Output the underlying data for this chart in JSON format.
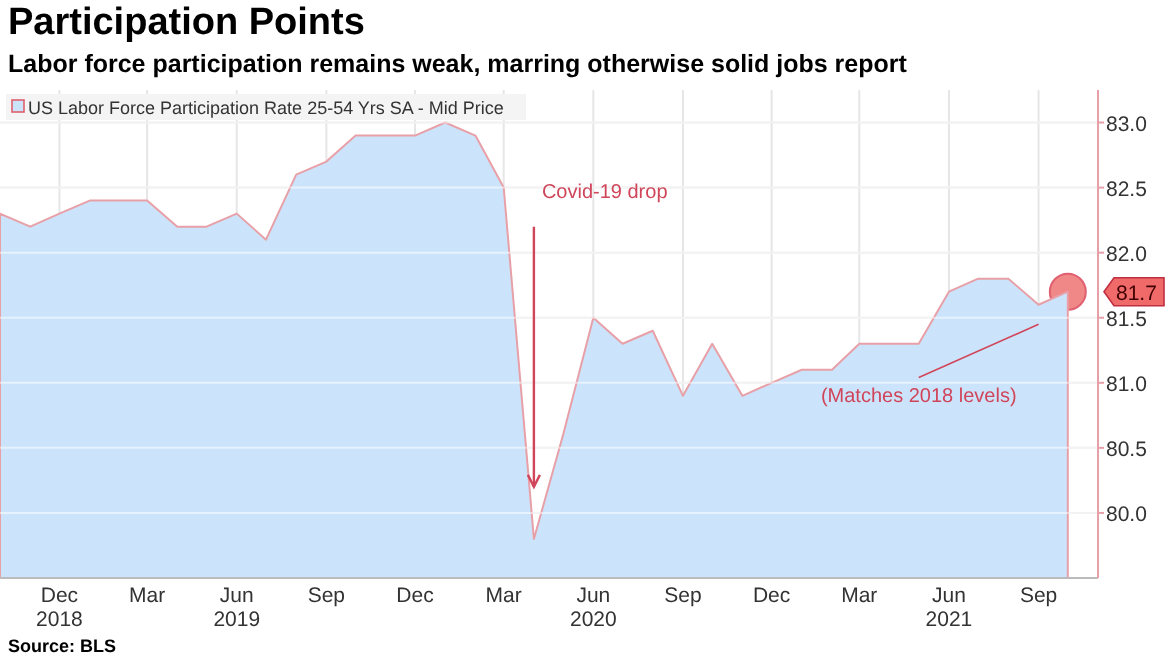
{
  "chart_data": {
    "type": "area",
    "title": "Participation Points",
    "subtitle": "Labor force participation remains weak, marring otherwise solid jobs report",
    "x": [
      "2018-10",
      "2018-11",
      "2018-12",
      "2019-01",
      "2019-02",
      "2019-03",
      "2019-04",
      "2019-05",
      "2019-06",
      "2019-07",
      "2019-08",
      "2019-09",
      "2019-10",
      "2019-11",
      "2019-12",
      "2020-01",
      "2020-02",
      "2020-03",
      "2020-04",
      "2020-05",
      "2020-06",
      "2020-07",
      "2020-08",
      "2020-09",
      "2020-10",
      "2020-11",
      "2020-12",
      "2021-01",
      "2021-02",
      "2021-03",
      "2021-04",
      "2021-05",
      "2021-06",
      "2021-07",
      "2021-08",
      "2021-09",
      "2021-10"
    ],
    "series": [
      {
        "name": "US Labor Force Participation Rate 25-54 Yrs SA - Mid Price",
        "color": "#cce4fb",
        "values": [
          82.3,
          82.2,
          82.3,
          82.4,
          82.4,
          82.4,
          82.2,
          82.2,
          82.3,
          82.1,
          82.6,
          82.7,
          82.9,
          82.9,
          82.9,
          83.0,
          82.9,
          82.5,
          79.8,
          80.6,
          81.5,
          81.3,
          81.4,
          80.9,
          81.3,
          80.9,
          81.0,
          81.1,
          81.1,
          81.3,
          81.3,
          81.3,
          81.7,
          81.8,
          81.8,
          81.6,
          81.7
        ]
      }
    ],
    "xlim": [
      "2018-10",
      "2021-11"
    ],
    "xticks": [
      {
        "value": "2018-12",
        "label": "Dec\n2018"
      },
      {
        "value": "2019-03",
        "label": "Mar"
      },
      {
        "value": "2019-06",
        "label": "Jun\n2019"
      },
      {
        "value": "2019-09",
        "label": "Sep"
      },
      {
        "value": "2019-12",
        "label": "Dec"
      },
      {
        "value": "2020-03",
        "label": "Mar"
      },
      {
        "value": "2020-06",
        "label": "Jun\n2020"
      },
      {
        "value": "2020-09",
        "label": "Sep"
      },
      {
        "value": "2020-12",
        "label": "Dec"
      },
      {
        "value": "2021-03",
        "label": "Mar"
      },
      {
        "value": "2021-06",
        "label": "Jun\n2021"
      },
      {
        "value": "2021-09",
        "label": "Sep"
      }
    ],
    "ylim": [
      79.5,
      83.25
    ],
    "yticks": [
      {
        "value": 80,
        "label": "80.0"
      },
      {
        "value": 80.5,
        "label": "80.5"
      },
      {
        "value": 81,
        "label": "81.0"
      },
      {
        "value": 81.5,
        "label": "81.5"
      },
      {
        "value": 82,
        "label": "82.0"
      },
      {
        "value": 82.5,
        "label": "82.5"
      },
      {
        "value": 83,
        "label": "83.0"
      }
    ],
    "grid": true,
    "legend": "top left",
    "annotations": [
      {
        "text": "Covid-19 drop",
        "x": "2020-04",
        "y": 80.2
      },
      "(Matches 2018 levels)",
      {
        "text": "81.7",
        "x": "2021-10",
        "y": 81.7
      },
      "Source: BLS"
    ]
  }
}
